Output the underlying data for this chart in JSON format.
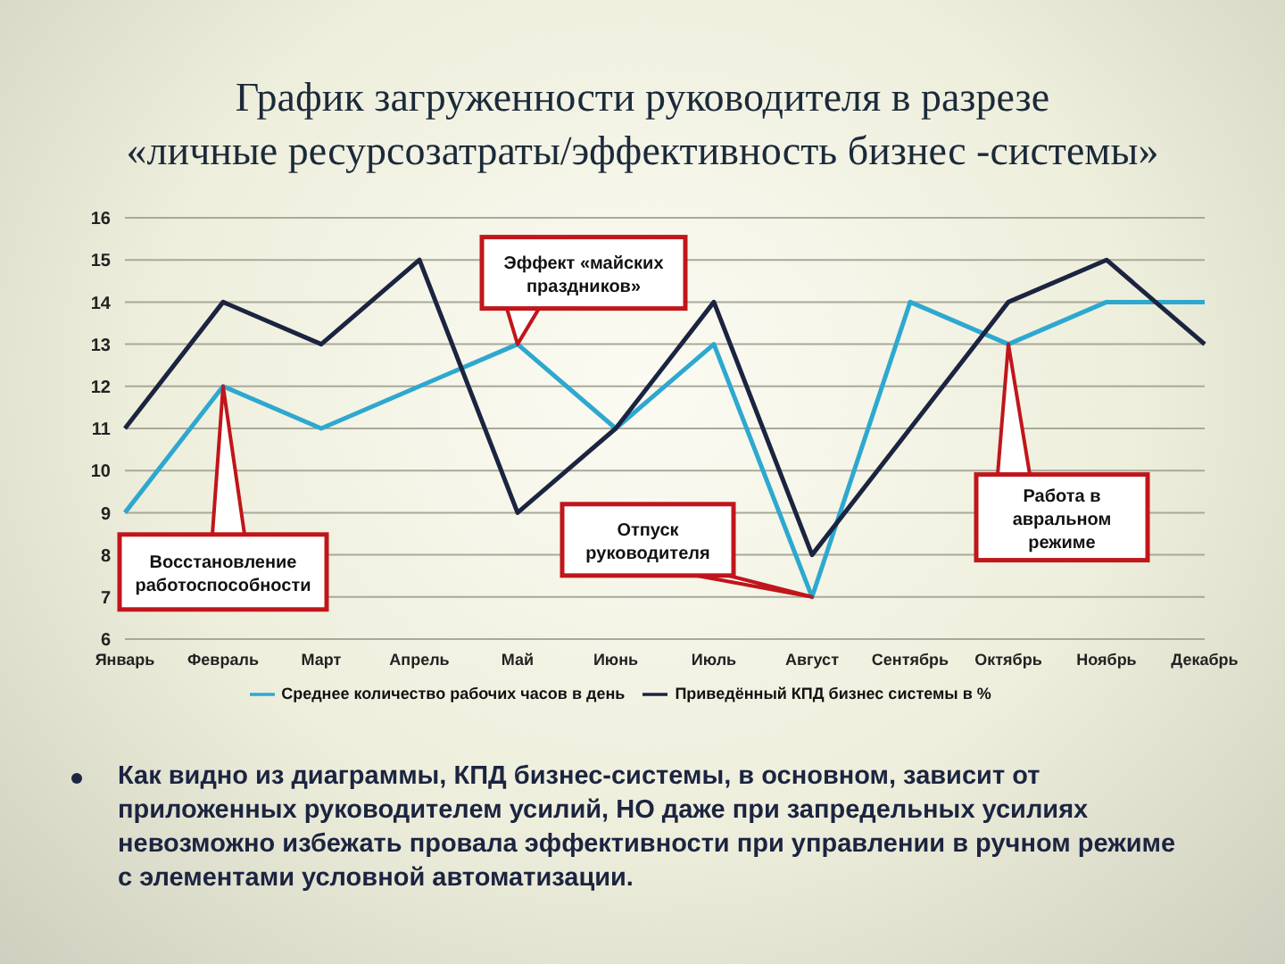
{
  "chart_data": {
    "type": "line",
    "title": "График загруженности руководителя в разрезе\n«личные ресурсозатраты/эффективность бизнес -системы»",
    "categories": [
      "Январь",
      "Февраль",
      "Март",
      "Апрель",
      "Май",
      "Июнь",
      "Июль",
      "Август",
      "Сентябрь",
      "Октябрь",
      "Ноябрь",
      "Декабрь"
    ],
    "series": [
      {
        "name": "Среднее количество рабочих часов в день",
        "color": "#2ea8cf",
        "values": [
          9,
          12,
          11,
          12,
          13,
          11,
          13,
          7,
          14,
          13,
          14,
          14
        ]
      },
      {
        "name": "Приведённый КПД бизнес системы в %",
        "color": "#1b2440",
        "values": [
          11,
          14,
          13,
          15,
          9,
          11,
          14,
          8,
          11,
          14,
          15,
          13
        ]
      }
    ],
    "ylim": [
      6,
      16
    ],
    "yticks": [
      6,
      7,
      8,
      9,
      10,
      11,
      12,
      13,
      14,
      15,
      16
    ],
    "grid": "y",
    "legend": "bottom",
    "marker": "none",
    "line_style": "solid",
    "annotations": [
      {
        "text": "Восстановление работоспособности",
        "x": "Февраль",
        "y": 12
      },
      {
        "text": "Эффект «майских праздников»",
        "x": "Май",
        "y": 13
      },
      {
        "text": "Отпуск руководителя",
        "x": "Август",
        "y": 7
      },
      {
        "text": "Работа в авральном режиме",
        "x": "Октябрь",
        "y": 13
      },
      "Как видно из диаграммы, КПД бизнес-системы, в основном, зависит от приложенных руководителем усилий, НО даже при запредельных усилиях невозможно избежать провала эффективности при управлении в ручном режиме с элементами условной автоматизации."
    ]
  }
}
